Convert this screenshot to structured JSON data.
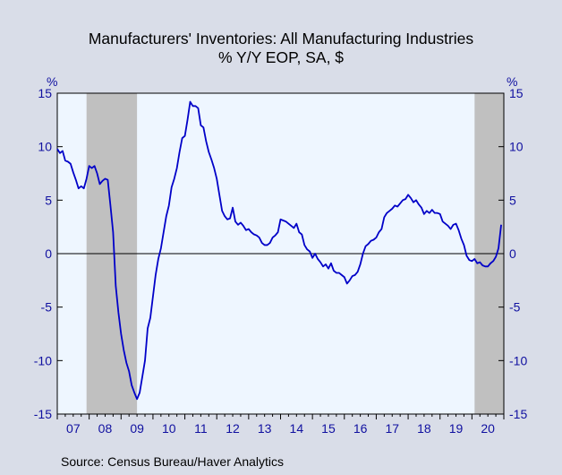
{
  "title": "Manufacturers' Inventories: All Manufacturing Industries",
  "subtitle": "% Y/Y   EOP, SA, $",
  "unit_left": "%",
  "unit_right": "%",
  "source": "Source:  Census Bureau/Haver Analytics",
  "colors": {
    "background": "#d9dde8",
    "plot_area": "#eef6ff",
    "recession": "#c0c0c0",
    "line": "#0000c8",
    "axis_text": "#1010a0",
    "zero_line": "#000000"
  },
  "chart_data": {
    "type": "line",
    "title": "Manufacturers' Inventories: All Manufacturing Industries",
    "subtitle": "% Y/Y   EOP, SA, $",
    "xlabel": "",
    "ylabel": "%",
    "xlim": [
      2007.0,
      2021.0
    ],
    "ylim": [
      -15,
      15
    ],
    "yticks": [
      15,
      10,
      5,
      0,
      -5,
      -10,
      -15
    ],
    "xticks": [
      "07",
      "08",
      "09",
      "10",
      "11",
      "12",
      "13",
      "14",
      "15",
      "16",
      "17",
      "18",
      "19",
      "20"
    ],
    "grid": false,
    "zero_line": true,
    "recessions": [
      {
        "start": 2007.917,
        "end": 2009.5
      },
      {
        "start": 2020.083,
        "end": 2021.0
      }
    ],
    "series": [
      {
        "points": [
          [
            2007.0,
            9.8
          ],
          [
            2007.083,
            9.4
          ],
          [
            2007.167,
            9.6
          ],
          [
            2007.25,
            8.7
          ],
          [
            2007.333,
            8.6
          ],
          [
            2007.417,
            8.4
          ],
          [
            2007.5,
            7.6
          ],
          [
            2007.583,
            6.9
          ],
          [
            2007.667,
            6.1
          ],
          [
            2007.75,
            6.3
          ],
          [
            2007.833,
            6.1
          ],
          [
            2007.917,
            7.0
          ],
          [
            2008.0,
            8.2
          ],
          [
            2008.083,
            8.0
          ],
          [
            2008.167,
            8.2
          ],
          [
            2008.25,
            7.5
          ],
          [
            2008.333,
            6.5
          ],
          [
            2008.417,
            6.8
          ],
          [
            2008.5,
            7.0
          ],
          [
            2008.583,
            6.9
          ],
          [
            2008.667,
            4.5
          ],
          [
            2008.75,
            2.0
          ],
          [
            2008.833,
            -3.0
          ],
          [
            2008.917,
            -5.5
          ],
          [
            2009.0,
            -7.5
          ],
          [
            2009.083,
            -9.0
          ],
          [
            2009.167,
            -10.2
          ],
          [
            2009.25,
            -11.0
          ],
          [
            2009.333,
            -12.3
          ],
          [
            2009.417,
            -13.0
          ],
          [
            2009.5,
            -13.6
          ],
          [
            2009.583,
            -13.0
          ],
          [
            2009.667,
            -11.5
          ],
          [
            2009.75,
            -10.0
          ],
          [
            2009.833,
            -7.0
          ],
          [
            2009.917,
            -6.0
          ],
          [
            2010.0,
            -4.0
          ],
          [
            2010.083,
            -2.0
          ],
          [
            2010.167,
            -0.5
          ],
          [
            2010.25,
            0.5
          ],
          [
            2010.333,
            2.0
          ],
          [
            2010.417,
            3.5
          ],
          [
            2010.5,
            4.5
          ],
          [
            2010.583,
            6.2
          ],
          [
            2010.667,
            7.0
          ],
          [
            2010.75,
            8.0
          ],
          [
            2010.833,
            9.5
          ],
          [
            2010.917,
            10.8
          ],
          [
            2011.0,
            11.0
          ],
          [
            2011.083,
            12.5
          ],
          [
            2011.167,
            14.2
          ],
          [
            2011.25,
            13.8
          ],
          [
            2011.333,
            13.8
          ],
          [
            2011.417,
            13.6
          ],
          [
            2011.5,
            12.0
          ],
          [
            2011.583,
            11.8
          ],
          [
            2011.667,
            10.5
          ],
          [
            2011.75,
            9.5
          ],
          [
            2011.833,
            8.8
          ],
          [
            2011.917,
            8.0
          ],
          [
            2012.0,
            7.0
          ],
          [
            2012.083,
            5.5
          ],
          [
            2012.167,
            4.0
          ],
          [
            2012.25,
            3.5
          ],
          [
            2012.333,
            3.2
          ],
          [
            2012.417,
            3.3
          ],
          [
            2012.5,
            4.3
          ],
          [
            2012.583,
            3.0
          ],
          [
            2012.667,
            2.7
          ],
          [
            2012.75,
            2.9
          ],
          [
            2012.833,
            2.6
          ],
          [
            2012.917,
            2.2
          ],
          [
            2013.0,
            2.3
          ],
          [
            2013.083,
            2.0
          ],
          [
            2013.167,
            1.8
          ],
          [
            2013.25,
            1.7
          ],
          [
            2013.333,
            1.5
          ],
          [
            2013.417,
            1.0
          ],
          [
            2013.5,
            0.8
          ],
          [
            2013.583,
            0.8
          ],
          [
            2013.667,
            1.0
          ],
          [
            2013.75,
            1.5
          ],
          [
            2013.833,
            1.7
          ],
          [
            2013.917,
            2.0
          ],
          [
            2014.0,
            3.2
          ],
          [
            2014.083,
            3.1
          ],
          [
            2014.167,
            3.0
          ],
          [
            2014.25,
            2.8
          ],
          [
            2014.333,
            2.6
          ],
          [
            2014.417,
            2.4
          ],
          [
            2014.5,
            2.8
          ],
          [
            2014.583,
            2.0
          ],
          [
            2014.667,
            1.8
          ],
          [
            2014.75,
            0.8
          ],
          [
            2014.833,
            0.4
          ],
          [
            2014.917,
            0.2
          ],
          [
            2015.0,
            -0.4
          ],
          [
            2015.083,
            0.0
          ],
          [
            2015.167,
            -0.5
          ],
          [
            2015.25,
            -0.8
          ],
          [
            2015.333,
            -1.2
          ],
          [
            2015.417,
            -1.0
          ],
          [
            2015.5,
            -1.4
          ],
          [
            2015.583,
            -0.9
          ],
          [
            2015.667,
            -1.6
          ],
          [
            2015.75,
            -1.8
          ],
          [
            2015.833,
            -1.8
          ],
          [
            2015.917,
            -2.0
          ],
          [
            2016.0,
            -2.2
          ],
          [
            2016.083,
            -2.8
          ],
          [
            2016.167,
            -2.5
          ],
          [
            2016.25,
            -2.1
          ],
          [
            2016.333,
            -2.0
          ],
          [
            2016.417,
            -1.7
          ],
          [
            2016.5,
            -1.0
          ],
          [
            2016.583,
            0.0
          ],
          [
            2016.667,
            0.7
          ],
          [
            2016.75,
            0.9
          ],
          [
            2016.833,
            1.2
          ],
          [
            2016.917,
            1.3
          ],
          [
            2017.0,
            1.5
          ],
          [
            2017.083,
            2.0
          ],
          [
            2017.167,
            2.3
          ],
          [
            2017.25,
            3.4
          ],
          [
            2017.333,
            3.8
          ],
          [
            2017.417,
            4.0
          ],
          [
            2017.5,
            4.2
          ],
          [
            2017.583,
            4.5
          ],
          [
            2017.667,
            4.4
          ],
          [
            2017.75,
            4.7
          ],
          [
            2017.833,
            5.0
          ],
          [
            2017.917,
            5.1
          ],
          [
            2018.0,
            5.5
          ],
          [
            2018.083,
            5.2
          ],
          [
            2018.167,
            4.8
          ],
          [
            2018.25,
            5.0
          ],
          [
            2018.333,
            4.6
          ],
          [
            2018.417,
            4.3
          ],
          [
            2018.5,
            3.7
          ],
          [
            2018.583,
            4.0
          ],
          [
            2018.667,
            3.8
          ],
          [
            2018.75,
            4.1
          ],
          [
            2018.833,
            3.8
          ],
          [
            2018.917,
            3.8
          ],
          [
            2019.0,
            3.7
          ],
          [
            2019.083,
            3.0
          ],
          [
            2019.167,
            2.8
          ],
          [
            2019.25,
            2.6
          ],
          [
            2019.333,
            2.3
          ],
          [
            2019.417,
            2.7
          ],
          [
            2019.5,
            2.8
          ],
          [
            2019.583,
            2.2
          ],
          [
            2019.667,
            1.4
          ],
          [
            2019.75,
            0.8
          ],
          [
            2019.833,
            -0.2
          ],
          [
            2019.917,
            -0.6
          ],
          [
            2020.0,
            -0.7
          ],
          [
            2020.083,
            -0.5
          ],
          [
            2020.167,
            -0.9
          ],
          [
            2020.25,
            -0.8
          ],
          [
            2020.333,
            -1.1
          ],
          [
            2020.417,
            -1.2
          ],
          [
            2020.5,
            -1.2
          ],
          [
            2020.583,
            -0.9
          ],
          [
            2020.667,
            -0.7
          ],
          [
            2020.75,
            -0.3
          ],
          [
            2020.833,
            0.5
          ],
          [
            2020.917,
            2.7
          ]
        ]
      }
    ]
  }
}
